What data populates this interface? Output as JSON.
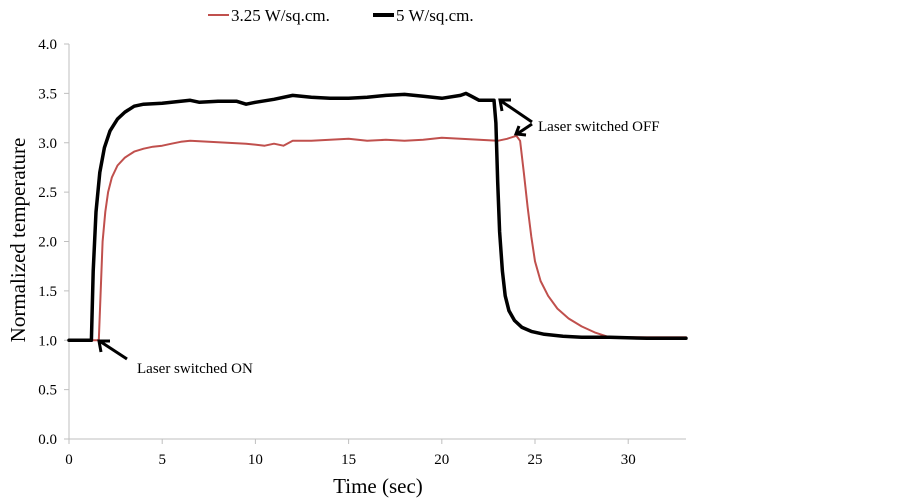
{
  "chart_data": {
    "type": "line",
    "title": "",
    "xlabel": "Time (sec)",
    "ylabel": "Normalized temperature",
    "xlim": [
      0,
      33.1
    ],
    "ylim": [
      0,
      4.0
    ],
    "xticks": [
      0,
      5,
      10,
      15,
      20,
      25,
      30
    ],
    "xtick_labels": [
      "0",
      "5",
      "10",
      "15",
      "20",
      "25",
      "30"
    ],
    "yticks": [
      0,
      0.5,
      1.0,
      1.5,
      2.0,
      2.5,
      3.0,
      3.5,
      4.0
    ],
    "ytick_labels": [
      "0.0",
      "0.5",
      "1.0",
      "1.5",
      "2.0",
      "2.5",
      "3.0",
      "3.5",
      "4.0"
    ],
    "grid": false,
    "legend": {
      "placement": "top-center"
    },
    "series": [
      {
        "name": "3.25 W/sq.cm.",
        "color": "#c0504d",
        "points": [
          [
            0,
            1.0
          ],
          [
            1.5,
            1.0
          ],
          [
            1.6,
            1.0
          ],
          [
            1.7,
            1.5
          ],
          [
            1.8,
            2.0
          ],
          [
            1.95,
            2.3
          ],
          [
            2.1,
            2.5
          ],
          [
            2.3,
            2.65
          ],
          [
            2.6,
            2.77
          ],
          [
            3.0,
            2.85
          ],
          [
            3.5,
            2.91
          ],
          [
            4.0,
            2.94
          ],
          [
            4.5,
            2.96
          ],
          [
            5.0,
            2.97
          ],
          [
            5.5,
            2.99
          ],
          [
            6.0,
            3.01
          ],
          [
            6.5,
            3.02
          ],
          [
            7.5,
            3.01
          ],
          [
            8.5,
            3.0
          ],
          [
            9.5,
            2.99
          ],
          [
            10.5,
            2.97
          ],
          [
            11.0,
            2.99
          ],
          [
            11.5,
            2.97
          ],
          [
            12.0,
            3.02
          ],
          [
            13.0,
            3.02
          ],
          [
            14.0,
            3.03
          ],
          [
            15.0,
            3.04
          ],
          [
            16.0,
            3.02
          ],
          [
            17.0,
            3.03
          ],
          [
            18.0,
            3.02
          ],
          [
            19.0,
            3.03
          ],
          [
            20.0,
            3.05
          ],
          [
            21.0,
            3.04
          ],
          [
            22.0,
            3.03
          ],
          [
            23.0,
            3.02
          ],
          [
            23.5,
            3.04
          ],
          [
            24.0,
            3.07
          ],
          [
            24.2,
            3.02
          ],
          [
            24.4,
            2.7
          ],
          [
            24.6,
            2.35
          ],
          [
            24.8,
            2.05
          ],
          [
            25.0,
            1.8
          ],
          [
            25.3,
            1.6
          ],
          [
            25.7,
            1.45
          ],
          [
            26.2,
            1.32
          ],
          [
            26.8,
            1.22
          ],
          [
            27.5,
            1.14
          ],
          [
            28.2,
            1.08
          ],
          [
            29.0,
            1.03
          ],
          [
            30.0,
            1.03
          ],
          [
            31.0,
            1.03
          ],
          [
            32.0,
            1.03
          ],
          [
            33.1,
            1.03
          ]
        ]
      },
      {
        "name": "5 W/sq.cm.",
        "color": "#000000",
        "points": [
          [
            0,
            1.0
          ],
          [
            1.15,
            1.0
          ],
          [
            1.2,
            1.0
          ],
          [
            1.3,
            1.7
          ],
          [
            1.45,
            2.3
          ],
          [
            1.65,
            2.7
          ],
          [
            1.9,
            2.95
          ],
          [
            2.2,
            3.12
          ],
          [
            2.6,
            3.24
          ],
          [
            3.0,
            3.31
          ],
          [
            3.5,
            3.37
          ],
          [
            4.0,
            3.39
          ],
          [
            5.0,
            3.4
          ],
          [
            6.0,
            3.42
          ],
          [
            6.5,
            3.43
          ],
          [
            7.0,
            3.41
          ],
          [
            8.0,
            3.42
          ],
          [
            9.0,
            3.42
          ],
          [
            9.5,
            3.39
          ],
          [
            10.0,
            3.41
          ],
          [
            11.0,
            3.44
          ],
          [
            12.0,
            3.48
          ],
          [
            13.0,
            3.46
          ],
          [
            14.0,
            3.45
          ],
          [
            15.0,
            3.45
          ],
          [
            16.0,
            3.46
          ],
          [
            17.0,
            3.48
          ],
          [
            18.0,
            3.49
          ],
          [
            19.0,
            3.47
          ],
          [
            20.0,
            3.45
          ],
          [
            21.0,
            3.48
          ],
          [
            21.3,
            3.5
          ],
          [
            21.6,
            3.47
          ],
          [
            22.0,
            3.43
          ],
          [
            22.8,
            3.43
          ],
          [
            22.9,
            3.2
          ],
          [
            23.0,
            2.6
          ],
          [
            23.1,
            2.1
          ],
          [
            23.25,
            1.7
          ],
          [
            23.4,
            1.45
          ],
          [
            23.6,
            1.3
          ],
          [
            23.9,
            1.2
          ],
          [
            24.3,
            1.13
          ],
          [
            24.8,
            1.09
          ],
          [
            25.5,
            1.06
          ],
          [
            26.5,
            1.04
          ],
          [
            27.5,
            1.03
          ],
          [
            29.0,
            1.03
          ],
          [
            31.0,
            1.02
          ],
          [
            33.1,
            1.02
          ]
        ]
      }
    ],
    "annotations": [
      {
        "text": "Laser switched ON",
        "points_to": [
          1.6,
          1.0
        ]
      },
      {
        "text": "Laser switched OFF",
        "points_to": [
          [
            23.0,
            3.43
          ],
          [
            24.0,
            3.07
          ]
        ]
      }
    ]
  }
}
